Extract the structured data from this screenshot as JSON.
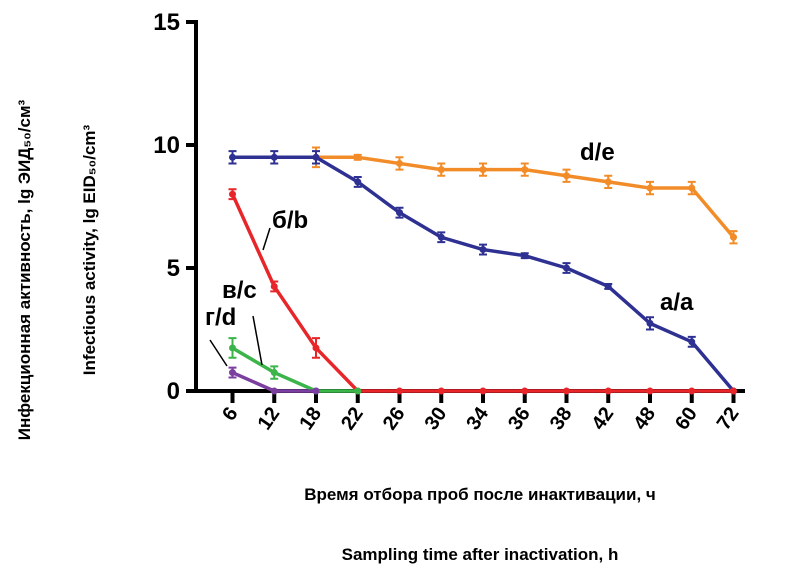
{
  "chart_data": {
    "type": "line",
    "title": "",
    "xlabel_ru": "Время отбора проб после инактивации, ч",
    "xlabel_en": "Sampling time after inactivation, h",
    "ylabel_ru": "Инфекционная активность, lg ЭИД₅₀/см³",
    "ylabel_en": "Infectious activity, lg EID₅₀/cm³",
    "categories": [
      "6",
      "12",
      "18",
      "22",
      "26",
      "30",
      "34",
      "36",
      "38",
      "42",
      "48",
      "60",
      "72"
    ],
    "ylim": [
      0,
      15
    ],
    "yticks": [
      "0",
      "5",
      "10",
      "15"
    ],
    "grid": false,
    "series": [
      {
        "name": "d/e",
        "color": "#f28c28",
        "values": [
          null,
          null,
          9.5,
          9.5,
          9.25,
          9.0,
          9.0,
          9.0,
          8.75,
          8.5,
          8.25,
          8.25,
          6.25
        ],
        "err": [
          null,
          null,
          0.4,
          0.1,
          0.25,
          0.25,
          0.25,
          0.25,
          0.25,
          0.25,
          0.25,
          0.25,
          0.25
        ]
      },
      {
        "name": "a/a",
        "color": "#2e3192",
        "values": [
          9.5,
          9.5,
          9.5,
          8.5,
          7.25,
          6.25,
          5.75,
          5.5,
          5.0,
          4.25,
          2.75,
          2.0,
          0
        ],
        "err": [
          0.25,
          0.25,
          0.25,
          0.2,
          0.2,
          0.2,
          0.2,
          0.1,
          0.2,
          0.1,
          0.25,
          0.2,
          0.05
        ]
      },
      {
        "name": "б/b",
        "color": "#e8262a",
        "values": [
          8.0,
          4.25,
          1.75,
          0,
          0,
          0,
          0,
          0,
          0,
          0,
          0,
          0,
          0
        ],
        "err": [
          0.2,
          0.2,
          0.4,
          0.05,
          0.05,
          0.05,
          0.05,
          0.05,
          0.05,
          0.05,
          0.05,
          0.05,
          0.05
        ]
      },
      {
        "name": "в/c",
        "color": "#3bb44a",
        "values": [
          1.75,
          0.75,
          0,
          0,
          null,
          null,
          null,
          null,
          null,
          null,
          null,
          null,
          null
        ],
        "err": [
          0.4,
          0.25,
          0.05,
          0.05,
          null,
          null,
          null,
          null,
          null,
          null,
          null,
          null,
          null
        ]
      },
      {
        "name": "г/d",
        "color": "#7b3fa0",
        "values": [
          0.75,
          0,
          0,
          null,
          null,
          null,
          null,
          null,
          null,
          null,
          null,
          null,
          null
        ],
        "err": [
          0.2,
          0.05,
          0.05,
          null,
          null,
          null,
          null,
          null,
          null,
          null,
          null,
          null,
          null
        ]
      }
    ]
  }
}
